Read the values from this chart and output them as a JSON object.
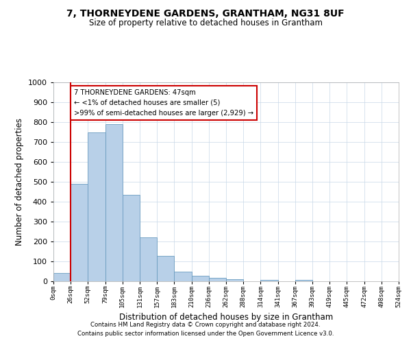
{
  "title": "7, THORNEYDENE GARDENS, GRANTHAM, NG31 8UF",
  "subtitle": "Size of property relative to detached houses in Grantham",
  "xlabel": "Distribution of detached houses by size in Grantham",
  "ylabel": "Number of detached properties",
  "bar_color": "#b8d0e8",
  "bar_edge_color": "#6a9cc0",
  "grid_color": "#c8d8e8",
  "background_color": "#ffffff",
  "bin_labels": [
    "0sqm",
    "26sqm",
    "52sqm",
    "79sqm",
    "105sqm",
    "131sqm",
    "157sqm",
    "183sqm",
    "210sqm",
    "236sqm",
    "262sqm",
    "288sqm",
    "314sqm",
    "341sqm",
    "367sqm",
    "393sqm",
    "419sqm",
    "445sqm",
    "472sqm",
    "498sqm",
    "524sqm"
  ],
  "bar_heights": [
    40,
    490,
    750,
    790,
    435,
    222,
    128,
    50,
    27,
    16,
    10,
    0,
    8,
    0,
    8,
    0,
    0,
    0,
    0,
    0
  ],
  "ylim": [
    0,
    1000
  ],
  "yticks": [
    0,
    100,
    200,
    300,
    400,
    500,
    600,
    700,
    800,
    900,
    1000
  ],
  "vline_x": 1,
  "annotation_text": "7 THORNEYDENE GARDENS: 47sqm\n← <1% of detached houses are smaller (5)\n>99% of semi-detached houses are larger (2,929) →",
  "annotation_box_color": "#ffffff",
  "annotation_box_edge_color": "#cc0000",
  "vline_color": "#cc0000",
  "footer_line1": "Contains HM Land Registry data © Crown copyright and database right 2024.",
  "footer_line2": "Contains public sector information licensed under the Open Government Licence v3.0."
}
